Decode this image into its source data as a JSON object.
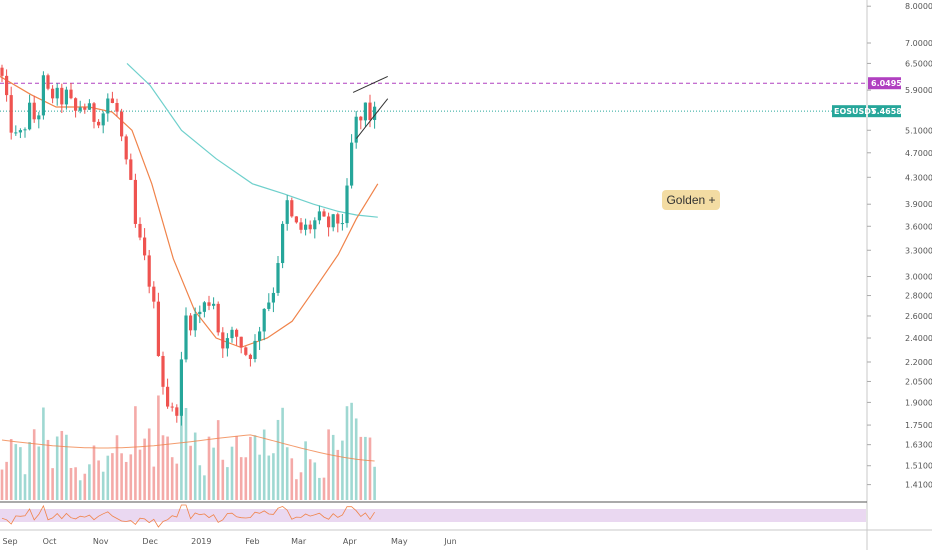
{
  "chart_data": {
    "type": "candlestick",
    "symbol": "EOSUSDT",
    "last_price": "5.4658",
    "resistance_level": "6.0495",
    "colors": {
      "up": "#26a69a",
      "down": "#ef5350",
      "ma_short": "#f0834a",
      "ma_long": "#6fd0cc",
      "resistance": "#b040c0",
      "last_price": "#26a69a",
      "rsi_band": "#e8d4f0",
      "rsi_line": "#f0834a",
      "annotation_bg": "#f3dca3"
    },
    "y_axis_ticks": [
      "8.0000",
      "7.0000",
      "6.5000",
      "5.9000",
      "5.1000",
      "4.7000",
      "4.3000",
      "3.9000",
      "3.6000",
      "3.3000",
      "3.0000",
      "2.8000",
      "2.6000",
      "2.4000",
      "2.2000",
      "2.0500",
      "1.9000",
      "1.7500",
      "1.6300",
      "1.5100",
      "1.4100"
    ],
    "x_axis_ticks": [
      "Sep",
      "Oct",
      "Nov",
      "Dec",
      "2019",
      "Feb",
      "Mar",
      "Apr",
      "May",
      "Jun"
    ],
    "ylim": [
      1.4,
      8.0
    ],
    "scale": "log",
    "close_path": [
      [
        "2018-09-01",
        6.4
      ],
      [
        "2018-09-05",
        5.6
      ],
      [
        "2018-09-09",
        5.0
      ],
      [
        "2018-09-12",
        4.9
      ],
      [
        "2018-09-16",
        5.2
      ],
      [
        "2018-09-19",
        5.5
      ],
      [
        "2018-09-22",
        5.3
      ],
      [
        "2018-09-25",
        5.5
      ],
      [
        "2018-09-27",
        6.1
      ],
      [
        "2018-09-30",
        5.8
      ],
      [
        "2018-10-04",
        5.8
      ],
      [
        "2018-10-08",
        5.7
      ],
      [
        "2018-10-12",
        5.8
      ],
      [
        "2018-10-16",
        5.4
      ],
      [
        "2018-10-20",
        5.6
      ],
      [
        "2018-10-24",
        5.5
      ],
      [
        "2018-10-28",
        5.35
      ],
      [
        "2018-11-02",
        5.4
      ],
      [
        "2018-11-06",
        5.8
      ],
      [
        "2018-11-09",
        5.5
      ],
      [
        "2018-11-12",
        5.4
      ],
      [
        "2018-11-15",
        4.6
      ],
      [
        "2018-11-19",
        4.2
      ],
      [
        "2018-11-22",
        3.6
      ],
      [
        "2018-11-26",
        3.3
      ],
      [
        "2018-11-30",
        3.0
      ],
      [
        "2018-12-03",
        2.7
      ],
      [
        "2018-12-07",
        2.2
      ],
      [
        "2018-12-10",
        1.95
      ],
      [
        "2018-12-13",
        1.85
      ],
      [
        "2018-12-16",
        1.8
      ],
      [
        "2018-12-19",
        2.0
      ],
      [
        "2018-12-22",
        2.6
      ],
      [
        "2018-12-25",
        2.55
      ],
      [
        "2018-12-29",
        2.6
      ],
      [
        "2019-01-03",
        2.7
      ],
      [
        "2019-01-08",
        2.8
      ],
      [
        "2019-01-12",
        2.4
      ],
      [
        "2019-01-16",
        2.35
      ],
      [
        "2019-01-21",
        2.45
      ],
      [
        "2019-01-25",
        2.35
      ],
      [
        "2019-01-29",
        2.25
      ],
      [
        "2019-02-03",
        2.35
      ],
      [
        "2019-02-08",
        2.7
      ],
      [
        "2019-02-13",
        2.8
      ],
      [
        "2019-02-18",
        3.4
      ],
      [
        "2019-02-22",
        3.9
      ],
      [
        "2019-02-26",
        3.6
      ],
      [
        "2019-03-03",
        3.55
      ],
      [
        "2019-03-08",
        3.6
      ],
      [
        "2019-03-13",
        3.7
      ],
      [
        "2019-03-18",
        3.6
      ],
      [
        "2019-03-23",
        3.65
      ],
      [
        "2019-03-28",
        3.7
      ],
      [
        "2019-04-01",
        4.3
      ],
      [
        "2019-04-03",
        5.3
      ],
      [
        "2019-04-07",
        5.2
      ],
      [
        "2019-04-11",
        5.6
      ],
      [
        "2019-04-14",
        5.3
      ],
      [
        "2019-04-18",
        5.47
      ]
    ],
    "ma_short": [
      [
        "2018-09-01",
        6.2
      ],
      [
        "2018-09-20",
        5.8
      ],
      [
        "2018-10-05",
        5.55
      ],
      [
        "2018-10-25",
        5.55
      ],
      [
        "2018-11-08",
        5.45
      ],
      [
        "2018-11-20",
        5.1
      ],
      [
        "2018-12-02",
        4.2
      ],
      [
        "2018-12-15",
        3.2
      ],
      [
        "2018-12-28",
        2.65
      ],
      [
        "2019-01-10",
        2.4
      ],
      [
        "2019-01-25",
        2.32
      ],
      [
        "2019-02-10",
        2.4
      ],
      [
        "2019-02-25",
        2.55
      ],
      [
        "2019-03-10",
        2.85
      ],
      [
        "2019-03-25",
        3.25
      ],
      [
        "2019-04-05",
        3.7
      ],
      [
        "2019-04-18",
        4.2
      ]
    ],
    "ma_long": [
      [
        "2018-11-17",
        6.5
      ],
      [
        "2018-12-01",
        6.0
      ],
      [
        "2018-12-20",
        5.1
      ],
      [
        "2019-01-10",
        4.6
      ],
      [
        "2019-02-01",
        4.2
      ],
      [
        "2019-02-20",
        4.05
      ],
      [
        "2019-03-10",
        3.9
      ],
      [
        "2019-03-25",
        3.8
      ],
      [
        "2019-04-05",
        3.75
      ],
      [
        "2019-04-18",
        3.72
      ]
    ],
    "wedge": {
      "upper": [
        [
          "2019-04-03",
          5.85
        ],
        [
          "2019-04-24",
          6.2
        ]
      ],
      "lower": [
        [
          "2019-04-05",
          4.95
        ],
        [
          "2019-04-24",
          5.72
        ]
      ]
    },
    "annotation": "Golden +"
  }
}
